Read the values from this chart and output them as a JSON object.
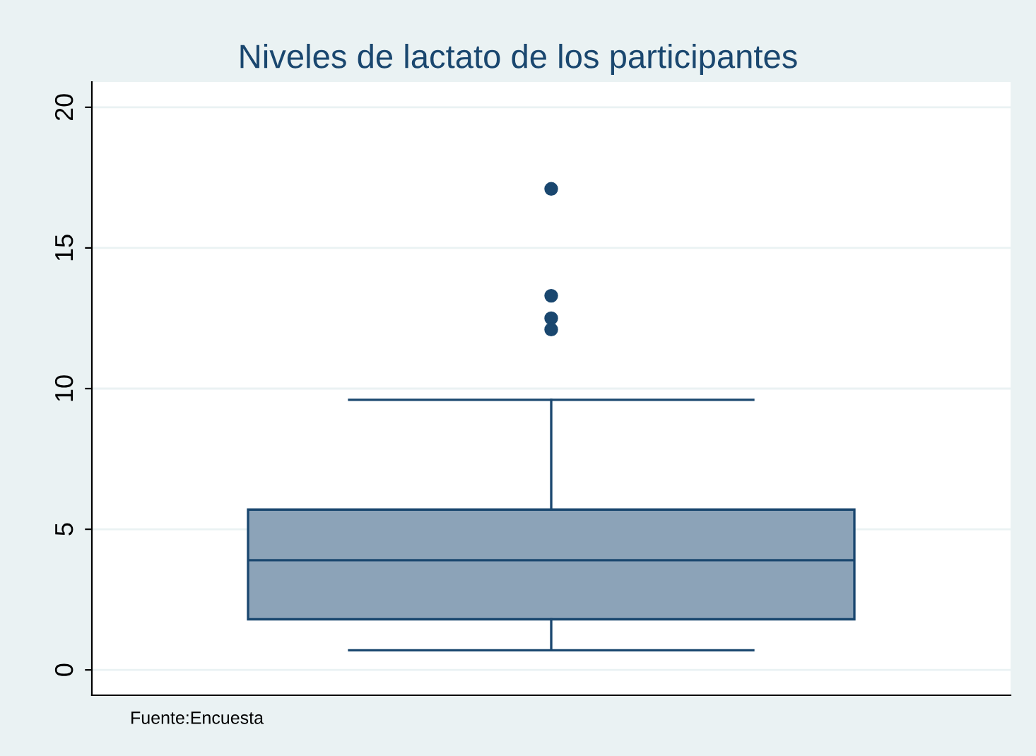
{
  "chart_data": {
    "type": "box",
    "title": "Niveles de lactato de los participantes",
    "categories": [
      null
    ],
    "boxes": [
      {
        "low": 0.7,
        "q1": 1.8,
        "median": 3.9,
        "q3": 5.7,
        "high": 9.6,
        "outliers": [
          17.1,
          13.3,
          12.5,
          12.1
        ]
      }
    ],
    "color": "#8ca3b8",
    "ylim": [
      -0.9,
      20.9
    ],
    "yticks": [
      0,
      5,
      10,
      15,
      20
    ],
    "grid": "y",
    "tick_labels": "y",
    "annotations": [
      "Fuente:Encuesta"
    ]
  }
}
